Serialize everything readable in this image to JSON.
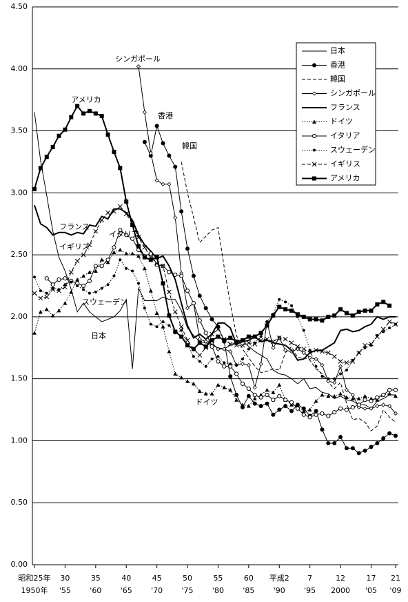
{
  "chart_data": {
    "type": "line",
    "x": [
      1950,
      1951,
      1952,
      1953,
      1954,
      1955,
      1956,
      1957,
      1958,
      1959,
      1960,
      1961,
      1962,
      1963,
      1964,
      1965,
      1966,
      1967,
      1968,
      1969,
      1970,
      1971,
      1972,
      1973,
      1974,
      1975,
      1976,
      1977,
      1978,
      1979,
      1980,
      1981,
      1982,
      1983,
      1984,
      1985,
      1986,
      1987,
      1988,
      1989,
      1990,
      1991,
      1992,
      1993,
      1994,
      1995,
      1996,
      1997,
      1998,
      1999,
      2000,
      2001,
      2002,
      2003,
      2004,
      2005,
      2006,
      2007,
      2008,
      2009
    ],
    "xlim": [
      1950,
      2009
    ],
    "xticks": [
      {
        "value": 1950,
        "label": "1950年"
      },
      {
        "value": 1955,
        "label": "'55"
      },
      {
        "value": 1960,
        "label": "'60"
      },
      {
        "value": 1965,
        "label": "'65"
      },
      {
        "value": 1970,
        "label": "'70"
      },
      {
        "value": 1975,
        "label": "'75"
      },
      {
        "value": 1980,
        "label": "'80"
      },
      {
        "value": 1985,
        "label": "'85"
      },
      {
        "value": 1990,
        "label": "'90"
      },
      {
        "value": 1995,
        "label": "'95"
      },
      {
        "value": 2000,
        "label": "2000"
      },
      {
        "value": 2005,
        "label": "'05"
      },
      {
        "value": 2009,
        "label": "'09"
      }
    ],
    "xticks_era": [
      {
        "value": 1950,
        "label": "昭和25年"
      },
      {
        "value": 1955,
        "label": "30"
      },
      {
        "value": 1960,
        "label": "35"
      },
      {
        "value": 1965,
        "label": "40"
      },
      {
        "value": 1970,
        "label": "45"
      },
      {
        "value": 1975,
        "label": "50"
      },
      {
        "value": 1980,
        "label": "55"
      },
      {
        "value": 1985,
        "label": "60"
      },
      {
        "value": 1990,
        "label": "平成2"
      },
      {
        "value": 1995,
        "label": "7"
      },
      {
        "value": 2000,
        "label": "12"
      },
      {
        "value": 2005,
        "label": "17"
      },
      {
        "value": 2009,
        "label": "21"
      }
    ],
    "ylim": [
      0,
      4.5
    ],
    "yticks": [
      {
        "value": 0,
        "label": "0.00"
      },
      {
        "value": 0.5,
        "label": "0.50"
      },
      {
        "value": 1,
        "label": "1.00"
      },
      {
        "value": 1.5,
        "label": "1.50"
      },
      {
        "value": 2,
        "label": "2.00"
      },
      {
        "value": 2.5,
        "label": "2.50"
      },
      {
        "value": 3,
        "label": "3.00"
      },
      {
        "value": 3.5,
        "label": "3.50"
      },
      {
        "value": 4,
        "label": "4.00"
      },
      {
        "value": 4.5,
        "label": "4.50"
      }
    ],
    "grid": true,
    "legend": "upper right",
    "series": [
      {
        "name": "日本",
        "color": "#000000",
        "dash": "solid",
        "width": 1,
        "marker": "none",
        "values": [
          3.65,
          3.26,
          2.98,
          2.69,
          2.48,
          2.37,
          2.22,
          2.04,
          2.11,
          2.04,
          2.0,
          1.96,
          1.98,
          2.0,
          2.05,
          2.14,
          1.58,
          2.23,
          2.13,
          2.13,
          2.13,
          2.16,
          2.14,
          2.14,
          2.05,
          1.91,
          1.85,
          1.8,
          1.79,
          1.77,
          1.75,
          1.74,
          1.77,
          1.8,
          1.81,
          1.76,
          1.72,
          1.69,
          1.66,
          1.57,
          1.54,
          1.53,
          1.5,
          1.46,
          1.5,
          1.42,
          1.43,
          1.39,
          1.38,
          1.34,
          1.36,
          1.33,
          1.32,
          1.29,
          1.29,
          1.26,
          1.32,
          1.34,
          1.37,
          1.37
        ]
      },
      {
        "name": "香港",
        "color": "#000000",
        "dash": "solid",
        "width": 1,
        "marker": "dot",
        "values": [
          null,
          null,
          null,
          null,
          null,
          null,
          null,
          null,
          null,
          null,
          null,
          null,
          null,
          null,
          null,
          null,
          null,
          null,
          3.41,
          3.3,
          3.54,
          3.4,
          3.3,
          3.21,
          2.85,
          2.55,
          2.33,
          2.17,
          2.07,
          1.98,
          1.92,
          1.8,
          1.52,
          1.37,
          1.27,
          1.36,
          1.3,
          1.28,
          1.3,
          1.21,
          1.25,
          1.28,
          1.24,
          1.29,
          1.26,
          1.2,
          1.24,
          1.09,
          0.98,
          0.98,
          1.03,
          0.94,
          0.94,
          0.9,
          0.92,
          0.95,
          0.98,
          1.02,
          1.06,
          1.04
        ]
      },
      {
        "name": "韓国",
        "color": "#000000",
        "dash": "dashed",
        "width": 1,
        "marker": "none",
        "values": [
          null,
          null,
          null,
          null,
          null,
          null,
          null,
          null,
          null,
          null,
          null,
          null,
          null,
          null,
          null,
          null,
          null,
          null,
          null,
          null,
          null,
          null,
          null,
          null,
          3.25,
          3.0,
          2.8,
          2.6,
          2.65,
          2.7,
          2.72,
          2.4,
          2.1,
          1.85,
          1.74,
          1.67,
          1.6,
          1.55,
          1.56,
          1.58,
          1.57,
          1.71,
          1.76,
          1.67,
          1.67,
          1.65,
          1.58,
          1.54,
          1.47,
          1.42,
          1.47,
          1.3,
          1.17,
          1.18,
          1.15,
          1.08,
          1.12,
          1.25,
          1.19,
          1.15
        ]
      },
      {
        "name": "シンガポール",
        "color": "#000000",
        "dash": "solid",
        "width": 1,
        "marker": "diamond",
        "values": [
          null,
          null,
          null,
          null,
          null,
          null,
          null,
          null,
          null,
          null,
          null,
          null,
          null,
          null,
          null,
          null,
          null,
          4.02,
          3.65,
          3.32,
          3.1,
          3.07,
          3.07,
          2.8,
          2.35,
          2.07,
          2.11,
          1.82,
          1.8,
          1.79,
          1.74,
          1.74,
          1.72,
          1.61,
          1.62,
          1.61,
          1.43,
          1.62,
          1.96,
          1.75,
          1.83,
          1.73,
          1.72,
          1.74,
          1.71,
          1.67,
          1.66,
          1.61,
          1.48,
          1.47,
          1.6,
          1.41,
          1.37,
          1.27,
          1.26,
          1.26,
          1.28,
          1.29,
          1.28,
          1.22
        ]
      },
      {
        "name": "フランス",
        "color": "#000000",
        "dash": "solid",
        "width": 2,
        "marker": "none",
        "values": [
          2.9,
          2.75,
          2.72,
          2.66,
          2.68,
          2.68,
          2.66,
          2.68,
          2.67,
          2.74,
          2.73,
          2.81,
          2.79,
          2.87,
          2.87,
          2.84,
          2.78,
          2.66,
          2.58,
          2.53,
          2.47,
          2.49,
          2.41,
          2.3,
          2.11,
          1.93,
          1.83,
          1.86,
          1.82,
          1.86,
          1.95,
          1.95,
          1.91,
          1.78,
          1.8,
          1.81,
          1.84,
          1.8,
          1.81,
          1.79,
          1.78,
          1.77,
          1.73,
          1.65,
          1.66,
          1.71,
          1.73,
          1.73,
          1.76,
          1.79,
          1.89,
          1.9,
          1.88,
          1.89,
          1.92,
          1.94,
          2.0,
          1.98,
          2.0,
          2.0
        ]
      },
      {
        "name": "ドイツ",
        "color": "#000000",
        "dash": "dotted",
        "width": 1,
        "marker": "triangle",
        "values": [
          1.87,
          2.04,
          2.06,
          2.01,
          2.05,
          2.11,
          2.2,
          2.3,
          2.33,
          2.36,
          2.37,
          2.46,
          2.44,
          2.52,
          2.54,
          2.51,
          2.51,
          2.49,
          2.39,
          2.21,
          2.03,
          1.92,
          1.72,
          1.54,
          1.51,
          1.48,
          1.46,
          1.4,
          1.38,
          1.38,
          1.45,
          1.43,
          1.41,
          1.33,
          1.29,
          1.28,
          1.34,
          1.37,
          1.41,
          1.39,
          1.45,
          1.33,
          1.29,
          1.28,
          1.24,
          1.25,
          1.32,
          1.37,
          1.36,
          1.36,
          1.38,
          1.35,
          1.34,
          1.34,
          1.36,
          1.34,
          1.33,
          1.37,
          1.38,
          1.36
        ]
      },
      {
        "name": "イタリア",
        "color": "#000000",
        "dash": "solid",
        "width": 1,
        "marker": "circle",
        "values": [
          null,
          null,
          2.31,
          2.26,
          2.3,
          2.31,
          2.29,
          2.27,
          2.25,
          2.29,
          2.41,
          2.41,
          2.46,
          2.56,
          2.7,
          2.66,
          2.63,
          2.54,
          2.49,
          2.51,
          2.42,
          2.41,
          2.36,
          2.34,
          2.33,
          2.21,
          2.11,
          1.97,
          1.87,
          1.76,
          1.64,
          1.6,
          1.6,
          1.54,
          1.46,
          1.42,
          1.37,
          1.35,
          1.37,
          1.33,
          1.36,
          1.33,
          1.31,
          1.26,
          1.21,
          1.19,
          1.21,
          1.22,
          1.2,
          1.23,
          1.26,
          1.25,
          1.27,
          1.29,
          1.33,
          1.32,
          1.35,
          1.37,
          1.41,
          1.41
        ]
      },
      {
        "name": "スウェーデン",
        "color": "#000000",
        "dash": "dotted",
        "width": 1,
        "marker": "smalldot",
        "values": [
          2.32,
          2.21,
          2.19,
          2.23,
          2.22,
          2.26,
          2.28,
          2.25,
          2.22,
          2.19,
          2.2,
          2.23,
          2.26,
          2.33,
          2.46,
          2.39,
          2.37,
          2.27,
          2.07,
          1.94,
          1.92,
          1.96,
          1.93,
          1.87,
          1.89,
          1.77,
          1.68,
          1.64,
          1.6,
          1.66,
          1.68,
          1.63,
          1.62,
          1.61,
          1.66,
          1.74,
          1.79,
          1.84,
          1.96,
          2.02,
          2.14,
          2.12,
          2.09,
          2.0,
          1.89,
          1.73,
          1.6,
          1.52,
          1.5,
          1.5,
          1.54,
          1.57,
          1.65,
          1.71,
          1.75,
          1.77,
          1.85,
          1.88,
          1.91,
          1.94
        ]
      },
      {
        "name": "イギリス",
        "color": "#000000",
        "dash": "dashed",
        "width": 1,
        "marker": "cross",
        "values": [
          2.19,
          2.15,
          2.16,
          2.22,
          2.21,
          2.24,
          2.36,
          2.45,
          2.5,
          2.58,
          2.69,
          2.78,
          2.84,
          2.85,
          2.89,
          2.83,
          2.75,
          2.64,
          2.56,
          2.48,
          2.43,
          2.41,
          2.2,
          2.04,
          1.92,
          1.81,
          1.74,
          1.69,
          1.75,
          1.86,
          1.9,
          1.82,
          1.78,
          1.77,
          1.77,
          1.79,
          1.78,
          1.81,
          1.82,
          1.8,
          1.83,
          1.82,
          1.79,
          1.76,
          1.74,
          1.71,
          1.73,
          1.72,
          1.71,
          1.68,
          1.64,
          1.63,
          1.64,
          1.71,
          1.77,
          1.78,
          1.84,
          1.9,
          1.96,
          1.94
        ]
      },
      {
        "name": "アメリカ",
        "color": "#000000",
        "dash": "solid",
        "width": 2,
        "marker": "square",
        "values": [
          3.03,
          3.2,
          3.29,
          3.37,
          3.46,
          3.51,
          3.61,
          3.7,
          3.64,
          3.66,
          3.64,
          3.62,
          3.47,
          3.33,
          3.2,
          2.93,
          2.74,
          2.57,
          2.48,
          2.46,
          2.48,
          2.27,
          2.01,
          1.88,
          1.84,
          1.77,
          1.74,
          1.79,
          1.76,
          1.81,
          1.84,
          1.81,
          1.83,
          1.8,
          1.81,
          1.84,
          1.84,
          1.87,
          1.93,
          2.01,
          2.08,
          2.06,
          2.05,
          2.02,
          2.0,
          1.98,
          1.98,
          1.97,
          2.0,
          2.01,
          2.06,
          2.03,
          2.01,
          2.04,
          2.05,
          2.05,
          2.1,
          2.12,
          2.09,
          null
        ]
      }
    ]
  }
}
